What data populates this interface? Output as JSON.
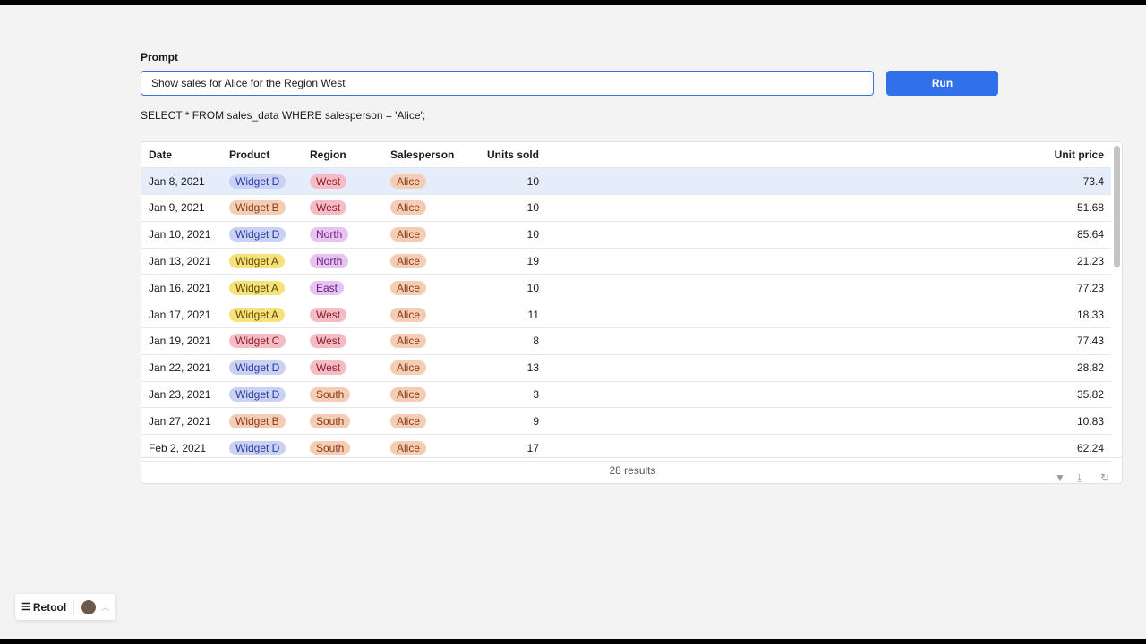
{
  "prompt": {
    "label": "Prompt",
    "value": "Show sales for Alice for the Region West"
  },
  "run_label": "Run",
  "sql": "SELECT * FROM sales_data WHERE salesperson = 'Alice';",
  "colors": {
    "accent": "#3170e8",
    "selected_row": "#e6edfa"
  },
  "table": {
    "columns": [
      "Date",
      "Product",
      "Region",
      "Salesperson",
      "Units sold",
      "Unit price"
    ],
    "rows": [
      [
        "Jan 8, 2021",
        "Widget D",
        "West",
        "Alice",
        "10",
        "73.4"
      ],
      [
        "Jan 9, 2021",
        "Widget B",
        "West",
        "Alice",
        "10",
        "51.68"
      ],
      [
        "Jan 10, 2021",
        "Widget D",
        "North",
        "Alice",
        "10",
        "85.64"
      ],
      [
        "Jan 13, 2021",
        "Widget A",
        "North",
        "Alice",
        "19",
        "21.23"
      ],
      [
        "Jan 16, 2021",
        "Widget A",
        "East",
        "Alice",
        "10",
        "77.23"
      ],
      [
        "Jan 17, 2021",
        "Widget A",
        "West",
        "Alice",
        "11",
        "18.33"
      ],
      [
        "Jan 19, 2021",
        "Widget C",
        "West",
        "Alice",
        "8",
        "77.43"
      ],
      [
        "Jan 22, 2021",
        "Widget D",
        "West",
        "Alice",
        "13",
        "28.82"
      ],
      [
        "Jan 23, 2021",
        "Widget D",
        "South",
        "Alice",
        "3",
        "35.82"
      ],
      [
        "Jan 27, 2021",
        "Widget B",
        "South",
        "Alice",
        "9",
        "10.83"
      ],
      [
        "Feb 2, 2021",
        "Widget D",
        "South",
        "Alice",
        "17",
        "62.24"
      ]
    ],
    "selected_row": 0,
    "results": "28 results",
    "footer_icons": [
      "filter-icon",
      "download-icon",
      "refresh-icon"
    ]
  },
  "pill_colors": {
    "Widget D": [
      "#c9d2f5",
      "#2a3a9a"
    ],
    "Widget B": [
      "#f5cdb5",
      "#8a3a1a"
    ],
    "Widget A": [
      "#f6e27a",
      "#5e4a00"
    ],
    "Widget C": [
      "#f5bcc5",
      "#8a1a2a"
    ],
    "West": [
      "#f5bcc5",
      "#8a1a2a"
    ],
    "North": [
      "#e7c3f0",
      "#6a1f86"
    ],
    "East": [
      "#e7c3f0",
      "#6a1f86"
    ],
    "South": [
      "#f5cdb5",
      "#8a3a1a"
    ],
    "Alice": [
      "#f5cdb5",
      "#8a3a1a"
    ]
  },
  "retool": {
    "label": "Retool"
  }
}
